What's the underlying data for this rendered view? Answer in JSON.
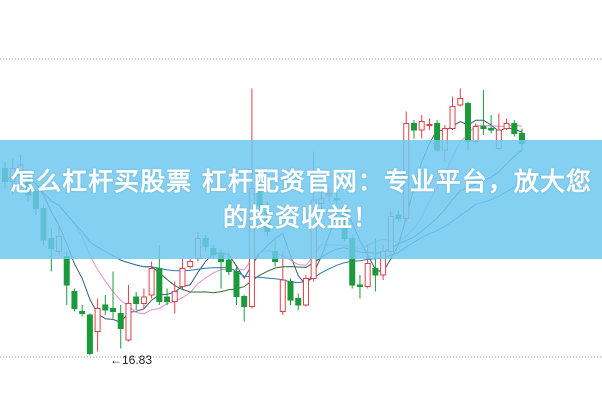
{
  "banner": {
    "line1": "怎么杠杆买股票 杠杆配资官网：专业平台，放大您",
    "line2": "的投资收益！"
  },
  "chart_data": {
    "type": "candlestick",
    "title": "",
    "annotation": {
      "text": "←16.83",
      "value": 16.83
    },
    "colors": {
      "up": "#e0404a",
      "down": "#1a9a3a",
      "ma_lines": [
        "#3a5a78",
        "#e090d0",
        "#2e6e3e",
        "#2a7ab8"
      ],
      "banner": "#6ec8f0"
    },
    "grid": "dotted horizontal lines",
    "candles": [
      [
        20.56,
        20.7,
        20.16,
        20.3
      ],
      [
        20.3,
        20.76,
        20.03,
        20.56
      ],
      [
        20.43,
        20.83,
        20.23,
        20.63
      ],
      [
        20.3,
        20.43,
        19.9,
        20.03
      ],
      [
        20.1,
        20.16,
        19.63,
        19.76
      ],
      [
        19.76,
        19.83,
        19.03,
        19.13
      ],
      [
        19.16,
        19.36,
        18.5,
        18.96
      ],
      [
        18.9,
        19.43,
        18.83,
        19.2
      ],
      [
        18.8,
        18.9,
        17.83,
        18.23
      ],
      [
        18.1,
        18.16,
        17.7,
        17.76
      ],
      [
        17.7,
        17.83,
        17.6,
        17.66
      ],
      [
        17.63,
        17.66,
        16.83,
        16.86
      ],
      [
        17.3,
        17.96,
        16.9,
        17.76
      ],
      [
        17.83,
        18.03,
        17.63,
        17.73
      ],
      [
        17.76,
        18.5,
        17.56,
        17.7
      ],
      [
        17.66,
        17.83,
        16.96,
        17.36
      ],
      [
        17.13,
        18.23,
        17.1,
        17.86
      ],
      [
        17.99,
        18.09,
        17.73,
        17.86
      ],
      [
        17.86,
        18.16,
        17.76,
        17.99
      ],
      [
        18.03,
        18.7,
        17.96,
        18.56
      ],
      [
        18.56,
        19.03,
        17.83,
        17.9
      ],
      [
        17.99,
        18.16,
        17.83,
        17.9
      ],
      [
        17.9,
        18.3,
        17.66,
        18.1
      ],
      [
        18.2,
        18.76,
        18.13,
        18.56
      ],
      [
        18.6,
        18.76,
        18.56,
        18.7
      ],
      [
        18.76,
        19.3,
        18.7,
        19.16
      ],
      [
        19.16,
        19.23,
        18.9,
        19.0
      ],
      [
        18.96,
        19.03,
        18.76,
        18.83
      ],
      [
        18.86,
        18.96,
        18.16,
        18.7
      ],
      [
        18.73,
        18.9,
        18.43,
        18.5
      ],
      [
        18.5,
        18.63,
        17.83,
        18.0
      ],
      [
        18.0,
        18.03,
        17.5,
        17.8
      ],
      [
        17.8,
        22.16,
        17.76,
        20.16
      ],
      [
        20.13,
        20.3,
        19.7,
        19.83
      ],
      [
        19.7,
        19.9,
        19.2,
        19.3
      ],
      [
        18.9,
        19.2,
        18.6,
        18.7
      ],
      [
        17.7,
        18.9,
        17.63,
        18.33
      ],
      [
        18.3,
        18.36,
        17.83,
        17.93
      ],
      [
        17.96,
        18.06,
        17.73,
        17.83
      ],
      [
        17.83,
        18.43,
        17.8,
        18.36
      ],
      [
        18.36,
        20.9,
        18.3,
        19.93
      ],
      [
        19.86,
        20.1,
        19.63,
        19.96
      ],
      [
        20.03,
        20.16,
        19.9,
        20.06
      ],
      [
        19.96,
        20.1,
        19.83,
        19.93
      ],
      [
        19.76,
        19.83,
        19.1,
        19.16
      ],
      [
        19.16,
        19.23,
        18.16,
        18.23
      ],
      [
        18.23,
        18.43,
        17.96,
        18.2
      ],
      [
        18.2,
        19.03,
        18.16,
        18.66
      ],
      [
        18.56,
        19.16,
        18.1,
        18.43
      ],
      [
        18.43,
        19.03,
        18.33,
        18.9
      ],
      [
        18.9,
        19.7,
        18.86,
        19.6
      ],
      [
        19.63,
        19.7,
        19.5,
        19.56
      ],
      [
        19.56,
        21.7,
        19.5,
        21.46
      ],
      [
        21.46,
        21.53,
        21.16,
        21.33
      ],
      [
        21.33,
        21.63,
        21.16,
        21.5
      ],
      [
        21.43,
        21.56,
        21.33,
        21.44
      ],
      [
        21.46,
        21.53,
        20.9,
        20.93
      ],
      [
        20.93,
        21.43,
        20.7,
        21.36
      ],
      [
        21.36,
        22.0,
        21.33,
        21.8
      ],
      [
        21.83,
        22.16,
        21.8,
        21.96
      ],
      [
        21.86,
        21.9,
        20.93,
        21.1
      ],
      [
        21.1,
        21.46,
        21.06,
        21.4
      ],
      [
        21.4,
        22.13,
        21.23,
        21.36
      ],
      [
        21.36,
        21.63,
        21.26,
        21.33
      ],
      [
        20.96,
        21.66,
        20.96,
        21.33
      ],
      [
        21.36,
        21.56,
        21.33,
        21.46
      ],
      [
        21.46,
        21.53,
        21.2,
        21.26
      ],
      [
        21.26,
        21.36,
        20.9,
        21.06
      ]
    ],
    "candle_format": [
      "open",
      "high",
      "low",
      "close"
    ]
  }
}
